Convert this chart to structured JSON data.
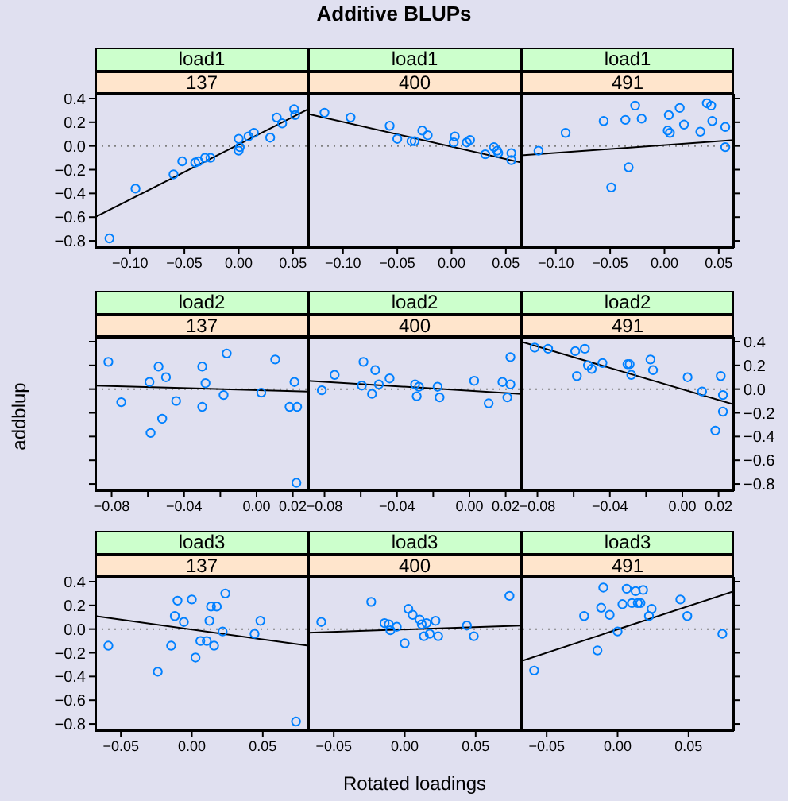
{
  "chart_data": [
    {
      "type": "scatter",
      "title": "load1",
      "subtitle": "137",
      "annotations": [
        "Additive BLUPs"
      ],
      "xlim": [
        -0.132,
        0.064
      ],
      "xticks": [
        {
          "value": -0.1,
          "label": "−0.10"
        },
        {
          "value": -0.05,
          "label": "−0.05"
        },
        {
          "value": 0,
          "label": "0.00"
        },
        {
          "value": 0.05,
          "label": "0.05"
        }
      ],
      "ylim": [
        -0.86,
        0.44
      ],
      "yticks": [
        {
          "value": -0.8,
          "label": "−0.8"
        },
        {
          "value": -0.6,
          "label": "−0.6"
        },
        {
          "value": -0.4,
          "label": "−0.4"
        },
        {
          "value": -0.2,
          "label": "−0.2"
        },
        {
          "value": 0,
          "label": "0.0"
        },
        {
          "value": 0.2,
          "label": "0.2"
        },
        {
          "value": 0.4,
          "label": "0.4"
        }
      ],
      "ref_lines": [
        {
          "axis": "y",
          "value": 0,
          "color": "#808080",
          "line_style": "dotted"
        }
      ],
      "series": [
        {
          "color": "#0080ff",
          "marker": "circle",
          "x": [
            -0.119,
            -0.095,
            -0.06,
            -0.052,
            -0.04,
            -0.037,
            -0.031,
            -0.026,
            0.0,
            0.0,
            0.001,
            0.009,
            0.014,
            0.029,
            0.035,
            0.04,
            0.051,
            0.052
          ],
          "values": [
            -0.78,
            -0.36,
            -0.24,
            -0.13,
            -0.14,
            -0.13,
            -0.1,
            -0.1,
            0.06,
            -0.04,
            -0.01,
            0.08,
            0.11,
            0.07,
            0.24,
            0.19,
            0.31,
            0.26
          ]
        },
        {
          "type": "line",
          "color": "#000000",
          "x": [
            -0.132,
            0.064
          ],
          "values": [
            -0.6,
            0.31
          ]
        }
      ]
    },
    {
      "type": "scatter",
      "title": "load1",
      "subtitle": "400",
      "tick_labels": "x",
      "xlim": [
        -0.132,
        0.064
      ],
      "xticks": [
        {
          "value": -0.1,
          "label": "−0.10"
        },
        {
          "value": -0.05,
          "label": "−0.05"
        },
        {
          "value": 0,
          "label": "0.00"
        },
        {
          "value": 0.05,
          "label": "0.05"
        }
      ],
      "ylim": [
        -0.86,
        0.44
      ],
      "ref_lines": [
        {
          "axis": "y",
          "value": 0,
          "color": "#808080",
          "line_style": "dotted"
        }
      ],
      "series": [
        {
          "color": "#0080ff",
          "marker": "circle",
          "x": [
            -0.117,
            -0.093,
            -0.057,
            -0.05,
            -0.037,
            -0.034,
            -0.027,
            -0.022,
            0.003,
            0.002,
            0.014,
            0.017,
            0.031,
            0.039,
            0.042,
            0.043,
            0.055,
            0.055
          ],
          "values": [
            0.28,
            0.24,
            0.17,
            0.06,
            0.04,
            0.04,
            0.13,
            0.09,
            0.08,
            0.03,
            0.03,
            0.05,
            -0.07,
            -0.01,
            -0.04,
            -0.06,
            -0.06,
            -0.12
          ]
        },
        {
          "type": "line",
          "color": "#000000",
          "x": [
            -0.132,
            0.064
          ],
          "values": [
            0.27,
            -0.14
          ]
        }
      ]
    },
    {
      "type": "scatter",
      "title": "load1",
      "subtitle": "491",
      "tick_labels": "x",
      "xlim": [
        -0.132,
        0.064
      ],
      "xticks": [
        {
          "value": -0.1,
          "label": "−0.10"
        },
        {
          "value": -0.05,
          "label": "−0.05"
        },
        {
          "value": 0,
          "label": "0.00"
        },
        {
          "value": 0.05,
          "label": "0.05"
        }
      ],
      "ylim": [
        -0.86,
        0.44
      ],
      "yticks": [
        {
          "value": -0.8,
          "label": null
        },
        {
          "value": -0.6,
          "label": null
        },
        {
          "value": -0.4,
          "label": null
        },
        {
          "value": -0.2,
          "label": null
        },
        {
          "value": 0,
          "label": null
        },
        {
          "value": 0.2,
          "label": null
        },
        {
          "value": 0.4,
          "label": null
        }
      ],
      "ref_lines": [
        {
          "axis": "y",
          "value": 0,
          "color": "#808080",
          "line_style": "dotted"
        }
      ],
      "series": [
        {
          "color": "#0080ff",
          "marker": "circle",
          "x": [
            -0.116,
            -0.091,
            -0.056,
            -0.049,
            -0.036,
            -0.033,
            -0.027,
            -0.021,
            0.004,
            0.003,
            0.005,
            0.014,
            0.018,
            0.033,
            0.039,
            0.043,
            0.044,
            0.056,
            0.056
          ],
          "values": [
            -0.04,
            0.11,
            0.21,
            -0.35,
            0.22,
            -0.18,
            0.34,
            0.23,
            0.26,
            0.13,
            0.11,
            0.32,
            0.18,
            0.12,
            0.36,
            0.34,
            0.21,
            0.16,
            -0.01
          ]
        },
        {
          "type": "line",
          "color": "#000000",
          "x": [
            -0.132,
            0.064
          ],
          "values": [
            -0.08,
            0.05
          ]
        }
      ]
    },
    {
      "type": "scatter",
      "title": "load2",
      "subtitle": "137",
      "ylabel": "addblup",
      "tick_labels": "x",
      "xlim": [
        -0.089,
        0.0285
      ],
      "xticks": [
        {
          "value": -0.08,
          "label": "−0.08"
        },
        {
          "value": -0.06,
          "label": null
        },
        {
          "value": -0.04,
          "label": "−0.04"
        },
        {
          "value": -0.02,
          "label": null
        },
        {
          "value": 0,
          "label": "0.00"
        },
        {
          "value": 0.02,
          "label": "0.02"
        }
      ],
      "ylim": [
        -0.86,
        0.44
      ],
      "yticks": [
        {
          "value": -0.8,
          "label": null
        },
        {
          "value": -0.6,
          "label": null
        },
        {
          "value": -0.4,
          "label": null
        },
        {
          "value": -0.2,
          "label": null
        },
        {
          "value": 0,
          "label": null
        },
        {
          "value": 0.2,
          "label": null
        },
        {
          "value": 0.4,
          "label": null
        }
      ],
      "ref_lines": [
        {
          "axis": "y",
          "value": 0,
          "color": "#808080",
          "line_style": "dotted"
        }
      ],
      "series": [
        {
          "color": "#0080ff",
          "marker": "circle",
          "x": [
            -0.0818,
            -0.0747,
            -0.0591,
            -0.0585,
            -0.0541,
            -0.0521,
            -0.05,
            -0.0444,
            -0.03,
            -0.03,
            -0.0282,
            -0.0182,
            -0.0165,
            0.0026,
            0.0103,
            0.0182,
            0.0209,
            0.0224,
            0.022
          ],
          "values": [
            0.23,
            -0.11,
            0.06,
            -0.37,
            0.19,
            -0.25,
            0.1,
            -0.1,
            0.19,
            -0.15,
            0.05,
            -0.05,
            0.3,
            -0.03,
            0.25,
            -0.15,
            0.06,
            -0.15,
            -0.79
          ]
        },
        {
          "type": "line",
          "color": "#000000",
          "x": [
            -0.089,
            0.0285
          ],
          "values": [
            0.03,
            -0.02
          ]
        }
      ]
    },
    {
      "type": "scatter",
      "title": "load2",
      "subtitle": "400",
      "tick_labels": "x",
      "xlim": [
        -0.089,
        0.0285
      ],
      "xticks": [
        {
          "value": -0.08,
          "label": "−0.08"
        },
        {
          "value": -0.06,
          "label": null
        },
        {
          "value": -0.04,
          "label": "−0.04"
        },
        {
          "value": -0.02,
          "label": null
        },
        {
          "value": 0,
          "label": "0.00"
        },
        {
          "value": 0.02,
          "label": "0.02"
        }
      ],
      "ylim": [
        -0.86,
        0.44
      ],
      "ref_lines": [
        {
          "axis": "y",
          "value": 0,
          "color": "#808080",
          "line_style": "dotted"
        }
      ],
      "series": [
        {
          "color": "#0080ff",
          "marker": "circle",
          "x": [
            -0.0815,
            -0.0744,
            -0.0585,
            -0.0594,
            -0.052,
            -0.0538,
            -0.05,
            -0.0441,
            -0.03,
            -0.0291,
            -0.0279,
            -0.0176,
            -0.0165,
            0.0026,
            0.0106,
            0.0182,
            0.0209,
            0.0226,
            0.0226
          ],
          "values": [
            -0.01,
            0.12,
            0.23,
            0.03,
            0.16,
            -0.04,
            0.04,
            0.09,
            0.04,
            -0.06,
            0.02,
            0.02,
            -0.07,
            0.07,
            -0.12,
            0.06,
            -0.07,
            0.04,
            0.27
          ]
        },
        {
          "type": "line",
          "color": "#000000",
          "x": [
            -0.089,
            0.0285
          ],
          "values": [
            0.07,
            -0.04
          ]
        }
      ]
    },
    {
      "type": "scatter",
      "title": "load2",
      "subtitle": "491",
      "xlim": [
        -0.089,
        0.0285
      ],
      "xticks": [
        {
          "value": -0.08,
          "label": "−0.08"
        },
        {
          "value": -0.06,
          "label": null
        },
        {
          "value": -0.04,
          "label": "−0.04"
        },
        {
          "value": -0.02,
          "label": null
        },
        {
          "value": 0,
          "label": "0.00"
        },
        {
          "value": 0.02,
          "label": "0.02"
        }
      ],
      "ylim": [
        -0.86,
        0.44
      ],
      "yticks": [
        {
          "value": -0.8,
          "label": "−0.8"
        },
        {
          "value": -0.6,
          "label": "−0.6"
        },
        {
          "value": -0.4,
          "label": "−0.4"
        },
        {
          "value": -0.2,
          "label": "−0.2"
        },
        {
          "value": 0,
          "label": "0.0"
        },
        {
          "value": 0.2,
          "label": "0.2"
        },
        {
          "value": 0.4,
          "label": "0.4"
        }
      ],
      "ref_lines": [
        {
          "axis": "y",
          "value": 0,
          "color": "#808080",
          "line_style": "dotted"
        }
      ],
      "series": [
        {
          "color": "#0080ff",
          "marker": "circle",
          "x": [
            -0.0815,
            -0.0741,
            -0.0591,
            -0.0582,
            -0.0538,
            -0.0521,
            -0.05,
            -0.0441,
            -0.0303,
            -0.0291,
            -0.0282,
            -0.0176,
            -0.0162,
            0.0029,
            0.0109,
            0.0212,
            0.0224,
            0.0224,
            0.0182
          ],
          "values": [
            0.35,
            0.34,
            0.32,
            0.11,
            0.34,
            0.2,
            0.17,
            0.22,
            0.21,
            0.21,
            0.12,
            0.25,
            0.16,
            0.1,
            -0.02,
            0.11,
            -0.05,
            -0.19,
            -0.35
          ]
        },
        {
          "type": "line",
          "color": "#000000",
          "x": [
            -0.089,
            0.0285
          ],
          "values": [
            0.4,
            -0.13
          ]
        }
      ]
    },
    {
      "type": "scatter",
      "title": "load3",
      "subtitle": "137",
      "xlim": [
        -0.068,
        0.082
      ],
      "xticks": [
        {
          "value": -0.05,
          "label": "−0.05"
        },
        {
          "value": 0,
          "label": "0.00"
        },
        {
          "value": 0.05,
          "label": "0.05"
        }
      ],
      "ylim": [
        -0.86,
        0.44
      ],
      "yticks": [
        {
          "value": -0.8,
          "label": "−0.8"
        },
        {
          "value": -0.6,
          "label": "−0.6"
        },
        {
          "value": -0.4,
          "label": "−0.4"
        },
        {
          "value": -0.2,
          "label": "−0.2"
        },
        {
          "value": 0,
          "label": "0.0"
        },
        {
          "value": 0.2,
          "label": "0.2"
        },
        {
          "value": 0.4,
          "label": "0.4"
        }
      ],
      "ref_lines": [
        {
          "axis": "y",
          "value": 0,
          "color": "#808080",
          "line_style": "dotted"
        }
      ],
      "series": [
        {
          "color": "#0080ff",
          "marker": "circle",
          "x": [
            -0.0588,
            -0.024,
            -0.0146,
            -0.012,
            -0.0101,
            -0.0056,
            0.0,
            0.0026,
            0.006,
            0.0105,
            0.0124,
            0.0135,
            0.0176,
            0.0157,
            0.0217,
            0.0236,
            0.0442,
            0.0483,
            0.0734
          ],
          "values": [
            -0.14,
            -0.36,
            -0.14,
            0.11,
            0.24,
            0.06,
            0.25,
            -0.24,
            -0.1,
            -0.1,
            0.07,
            0.19,
            0.19,
            -0.14,
            -0.02,
            0.3,
            -0.04,
            0.07,
            -0.78
          ]
        },
        {
          "type": "line",
          "color": "#000000",
          "x": [
            -0.068,
            0.082
          ],
          "values": [
            0.11,
            -0.14
          ]
        }
      ]
    },
    {
      "type": "scatter",
      "title": "load3",
      "subtitle": "400",
      "xlabel": "Rotated loadings",
      "tick_labels": "x",
      "xlim": [
        -0.068,
        0.082
      ],
      "xticks": [
        {
          "value": -0.05,
          "label": "−0.05"
        },
        {
          "value": 0,
          "label": "0.00"
        },
        {
          "value": 0.05,
          "label": "0.05"
        }
      ],
      "ylim": [
        -0.86,
        0.44
      ],
      "ref_lines": [
        {
          "axis": "y",
          "value": 0,
          "color": "#808080",
          "line_style": "dotted"
        }
      ],
      "series": [
        {
          "color": "#0080ff",
          "marker": "circle",
          "x": [
            -0.0588,
            -0.0236,
            -0.0142,
            -0.0112,
            -0.0101,
            -0.0056,
            0.0,
            0.0026,
            0.0056,
            0.0105,
            0.012,
            0.0135,
            0.0154,
            0.0176,
            0.0217,
            0.0236,
            0.0438,
            0.0487,
            0.0738
          ],
          "values": [
            0.06,
            0.23,
            0.05,
            0.04,
            -0.01,
            0.02,
            -0.12,
            0.17,
            0.12,
            0.08,
            0.04,
            -0.06,
            0.05,
            -0.04,
            0.07,
            -0.06,
            0.03,
            -0.06,
            0.28
          ]
        },
        {
          "type": "line",
          "color": "#000000",
          "x": [
            -0.068,
            0.082
          ],
          "values": [
            -0.03,
            0.03
          ]
        }
      ]
    },
    {
      "type": "scatter",
      "title": "load3",
      "subtitle": "491",
      "tick_labels": "x",
      "xlim": [
        -0.068,
        0.082
      ],
      "xticks": [
        {
          "value": -0.05,
          "label": "−0.05"
        },
        {
          "value": 0,
          "label": "0.00"
        },
        {
          "value": 0.05,
          "label": "0.05"
        }
      ],
      "ylim": [
        -0.86,
        0.44
      ],
      "yticks": [
        {
          "value": -0.8,
          "label": null
        },
        {
          "value": -0.6,
          "label": null
        },
        {
          "value": -0.4,
          "label": null
        },
        {
          "value": -0.2,
          "label": null
        },
        {
          "value": 0,
          "label": null
        },
        {
          "value": 0.2,
          "label": null
        },
        {
          "value": 0.4,
          "label": null
        }
      ],
      "ref_lines": [
        {
          "axis": "y",
          "value": 0,
          "color": "#808080",
          "line_style": "dotted"
        }
      ],
      "series": [
        {
          "color": "#0080ff",
          "marker": "circle",
          "x": [
            -0.0588,
            -0.0236,
            -0.0142,
            -0.0116,
            -0.0101,
            -0.0056,
            0.0,
            0.0034,
            0.0064,
            0.0101,
            0.0127,
            0.0142,
            0.0161,
            0.018,
            0.0221,
            0.024,
            0.0442,
            0.0491,
            0.0738
          ],
          "values": [
            -0.35,
            0.11,
            -0.18,
            0.18,
            0.35,
            0.12,
            -0.02,
            0.21,
            0.34,
            0.22,
            0.32,
            0.22,
            0.22,
            0.33,
            0.11,
            0.17,
            0.25,
            0.11,
            -0.04
          ]
        },
        {
          "type": "line",
          "color": "#000000",
          "x": [
            -0.068,
            0.082
          ],
          "values": [
            -0.27,
            0.32
          ]
        }
      ]
    }
  ]
}
